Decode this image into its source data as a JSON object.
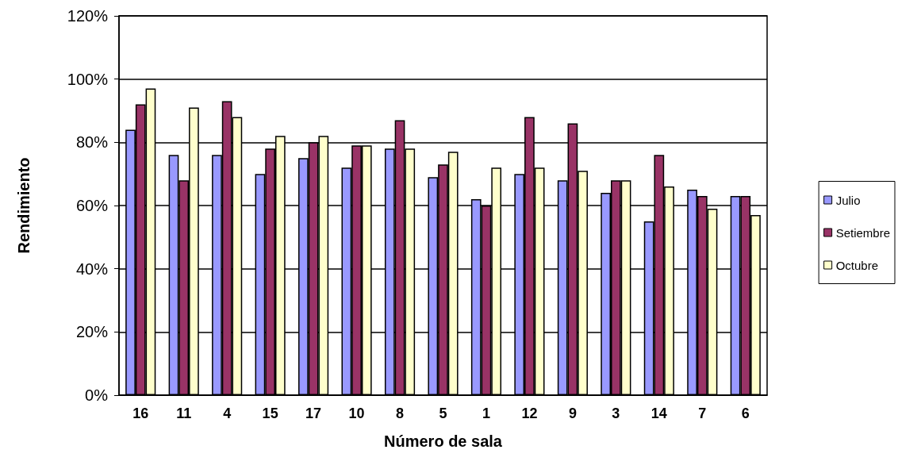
{
  "chart_data": {
    "type": "bar",
    "xlabel": "Número de sala",
    "ylabel": "Rendimiento",
    "categories": [
      "16",
      "11",
      "4",
      "15",
      "17",
      "10",
      "8",
      "5",
      "1",
      "12",
      "9",
      "3",
      "14",
      "7",
      "6"
    ],
    "series": [
      {
        "name": "Julio",
        "color": "#9999ff",
        "values": [
          84,
          76,
          76,
          70,
          75,
          72,
          78,
          69,
          62,
          70,
          68,
          64,
          55,
          65,
          63
        ]
      },
      {
        "name": "Setiembre",
        "color": "#993366",
        "values": [
          92,
          68,
          93,
          78,
          80,
          79,
          87,
          73,
          60,
          88,
          86,
          68,
          76,
          63,
          63
        ]
      },
      {
        "name": "Octubre",
        "color": "#ffffcc",
        "values": [
          97,
          91,
          88,
          82,
          82,
          79,
          78,
          77,
          72,
          72,
          71,
          68,
          66,
          59,
          57
        ]
      }
    ],
    "ylim": [
      0,
      120
    ],
    "yticks": [
      {
        "value": 0,
        "label": "0%"
      },
      {
        "value": 20,
        "label": "20%"
      },
      {
        "value": 40,
        "label": "40%"
      },
      {
        "value": 60,
        "label": "60%"
      },
      {
        "value": 80,
        "label": "80%"
      },
      {
        "value": 100,
        "label": "100%"
      },
      {
        "value": 120,
        "label": "120%"
      }
    ],
    "grid": "y",
    "legend": "right"
  }
}
